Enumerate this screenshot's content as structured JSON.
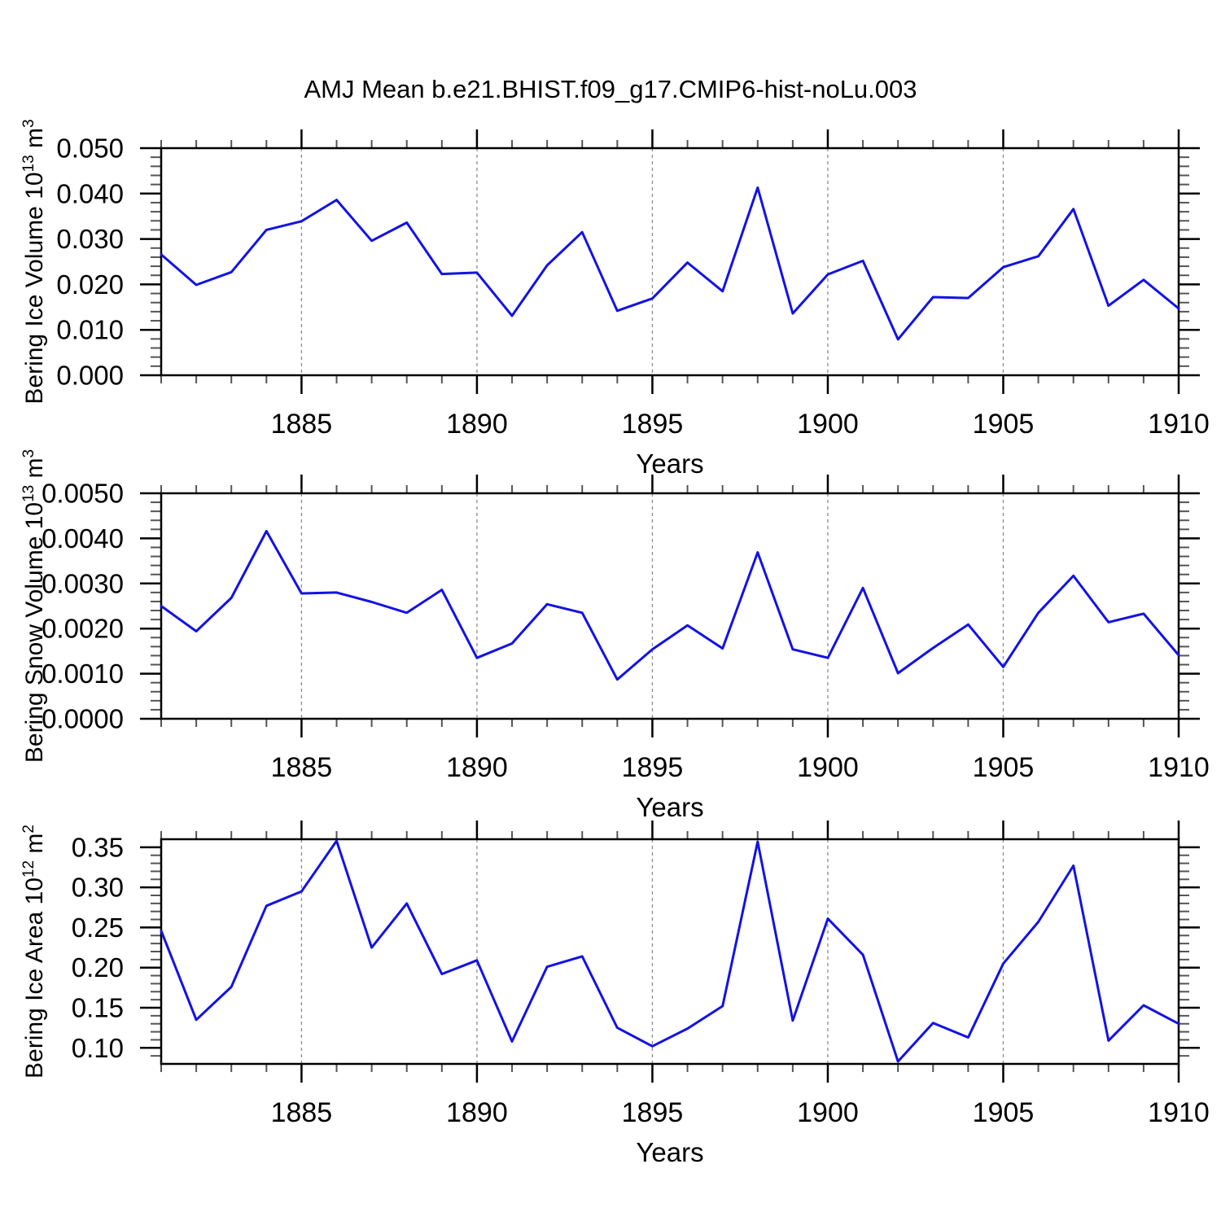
{
  "figure": {
    "title": "AMJ Mean b.e21.BHIST.f09_g17.CMIP6-hist-noLu.003"
  },
  "colors": {
    "line": "#1212e6",
    "grid": "#8c8c8c",
    "axis": "#000000",
    "minor_tick": "#555555",
    "background": "#ffffff"
  },
  "chart_data": [
    {
      "type": "line",
      "name": "bering-ice-volume",
      "ylabel": "Bering Ice Volume 10^13 m^3",
      "ylabel_parts": [
        {
          "t": "Bering Ice Volume 10"
        },
        {
          "t": "13",
          "sup": true
        },
        {
          "t": " m"
        },
        {
          "t": "3",
          "sup": true
        }
      ],
      "xlabel": "Years",
      "x_start": 1881,
      "x_end": 1910,
      "x": [
        1881,
        1882,
        1883,
        1884,
        1885,
        1886,
        1887,
        1888,
        1889,
        1890,
        1891,
        1892,
        1893,
        1894,
        1895,
        1896,
        1897,
        1898,
        1899,
        1900,
        1901,
        1902,
        1903,
        1904,
        1905,
        1906,
        1907,
        1908,
        1909,
        1910
      ],
      "values": [
        0.0266,
        0.0199,
        0.0227,
        0.032,
        0.0339,
        0.0386,
        0.0296,
        0.0336,
        0.0223,
        0.0226,
        0.0131,
        0.0242,
        0.0315,
        0.0142,
        0.0169,
        0.0248,
        0.0185,
        0.0413,
        0.0136,
        0.0222,
        0.0252,
        0.0079,
        0.0172,
        0.017,
        0.0238,
        0.0262,
        0.0366,
        0.0153,
        0.021,
        0.0147
      ],
      "ylim": [
        0.0,
        0.05
      ],
      "ytick_values": [
        0.0,
        0.01,
        0.02,
        0.03,
        0.04,
        0.05
      ],
      "ytick_labels": [
        "0.000",
        "0.010",
        "0.020",
        "0.030",
        "0.040",
        "0.050"
      ],
      "ytick_minor_step": 0.002,
      "xtick_values": [
        1885,
        1890,
        1895,
        1900,
        1905,
        1910
      ],
      "xtick_labels": [
        "1885",
        "1890",
        "1895",
        "1900",
        "1905",
        "1910"
      ],
      "xtick_minor_step": 1,
      "grid_years": [
        1885,
        1890,
        1895,
        1900,
        1905
      ],
      "grid": true,
      "legend": "none"
    },
    {
      "type": "line",
      "name": "bering-snow-volume",
      "ylabel": "Bering Snow Volume 10^13 m^3",
      "ylabel_parts": [
        {
          "t": "Bering Snow Volume 10"
        },
        {
          "t": "13",
          "sup": true
        },
        {
          "t": " m"
        },
        {
          "t": "3",
          "sup": true
        }
      ],
      "xlabel": "Years",
      "x_start": 1881,
      "x_end": 1910,
      "x": [
        1881,
        1882,
        1883,
        1884,
        1885,
        1886,
        1887,
        1888,
        1889,
        1890,
        1891,
        1892,
        1893,
        1894,
        1895,
        1896,
        1897,
        1898,
        1899,
        1900,
        1901,
        1902,
        1903,
        1904,
        1905,
        1906,
        1907,
        1908,
        1909,
        1910
      ],
      "values": [
        0.0025,
        0.00194,
        0.00268,
        0.00416,
        0.00278,
        0.0028,
        0.00259,
        0.00235,
        0.00286,
        0.00135,
        0.00167,
        0.00254,
        0.00235,
        0.00087,
        0.00154,
        0.00207,
        0.00156,
        0.00369,
        0.00154,
        0.00135,
        0.0029,
        0.00101,
        0.00157,
        0.00209,
        0.00115,
        0.00235,
        0.00317,
        0.00214,
        0.00233,
        0.00141
      ],
      "ylim": [
        0.0,
        0.005
      ],
      "ytick_values": [
        0.0,
        0.001,
        0.002,
        0.003,
        0.004,
        0.005
      ],
      "ytick_labels": [
        "0.0000",
        "0.0010",
        "0.0020",
        "0.0030",
        "0.0040",
        "0.0050"
      ],
      "ytick_minor_step": 0.0002,
      "xtick_values": [
        1885,
        1890,
        1895,
        1900,
        1905,
        1910
      ],
      "xtick_labels": [
        "1885",
        "1890",
        "1895",
        "1900",
        "1905",
        "1910"
      ],
      "xtick_minor_step": 1,
      "grid_years": [
        1885,
        1890,
        1895,
        1900,
        1905
      ],
      "grid": true,
      "legend": "none"
    },
    {
      "type": "line",
      "name": "bering-ice-area",
      "ylabel": "Bering Ice Area 10^12 m^2",
      "ylabel_parts": [
        {
          "t": "Bering Ice Area 10"
        },
        {
          "t": "12",
          "sup": true
        },
        {
          "t": " m"
        },
        {
          "t": "2",
          "sup": true
        }
      ],
      "xlabel": "Years",
      "x_start": 1881,
      "x_end": 1910,
      "x": [
        1881,
        1882,
        1883,
        1884,
        1885,
        1886,
        1887,
        1888,
        1889,
        1890,
        1891,
        1892,
        1893,
        1894,
        1895,
        1896,
        1897,
        1898,
        1899,
        1900,
        1901,
        1902,
        1903,
        1904,
        1905,
        1906,
        1907,
        1908,
        1909,
        1910
      ],
      "values": [
        0.246,
        0.135,
        0.176,
        0.277,
        0.295,
        0.358,
        0.225,
        0.28,
        0.192,
        0.209,
        0.108,
        0.201,
        0.214,
        0.125,
        0.102,
        0.124,
        0.152,
        0.357,
        0.134,
        0.261,
        0.216,
        0.083,
        0.131,
        0.113,
        0.205,
        0.257,
        0.327,
        0.109,
        0.153,
        0.13
      ],
      "ylim": [
        0.08,
        0.36
      ],
      "ytick_values": [
        0.1,
        0.15,
        0.2,
        0.25,
        0.3,
        0.35
      ],
      "ytick_labels": [
        "0.10",
        "0.15",
        "0.20",
        "0.25",
        "0.30",
        "0.35"
      ],
      "ytick_minor_step": 0.01,
      "xtick_values": [
        1885,
        1890,
        1895,
        1900,
        1905,
        1910
      ],
      "xtick_labels": [
        "1885",
        "1890",
        "1895",
        "1900",
        "1905",
        "1910"
      ],
      "xtick_minor_step": 1,
      "grid_years": [
        1885,
        1890,
        1895,
        1900,
        1905
      ],
      "grid": true,
      "legend": "none"
    }
  ]
}
